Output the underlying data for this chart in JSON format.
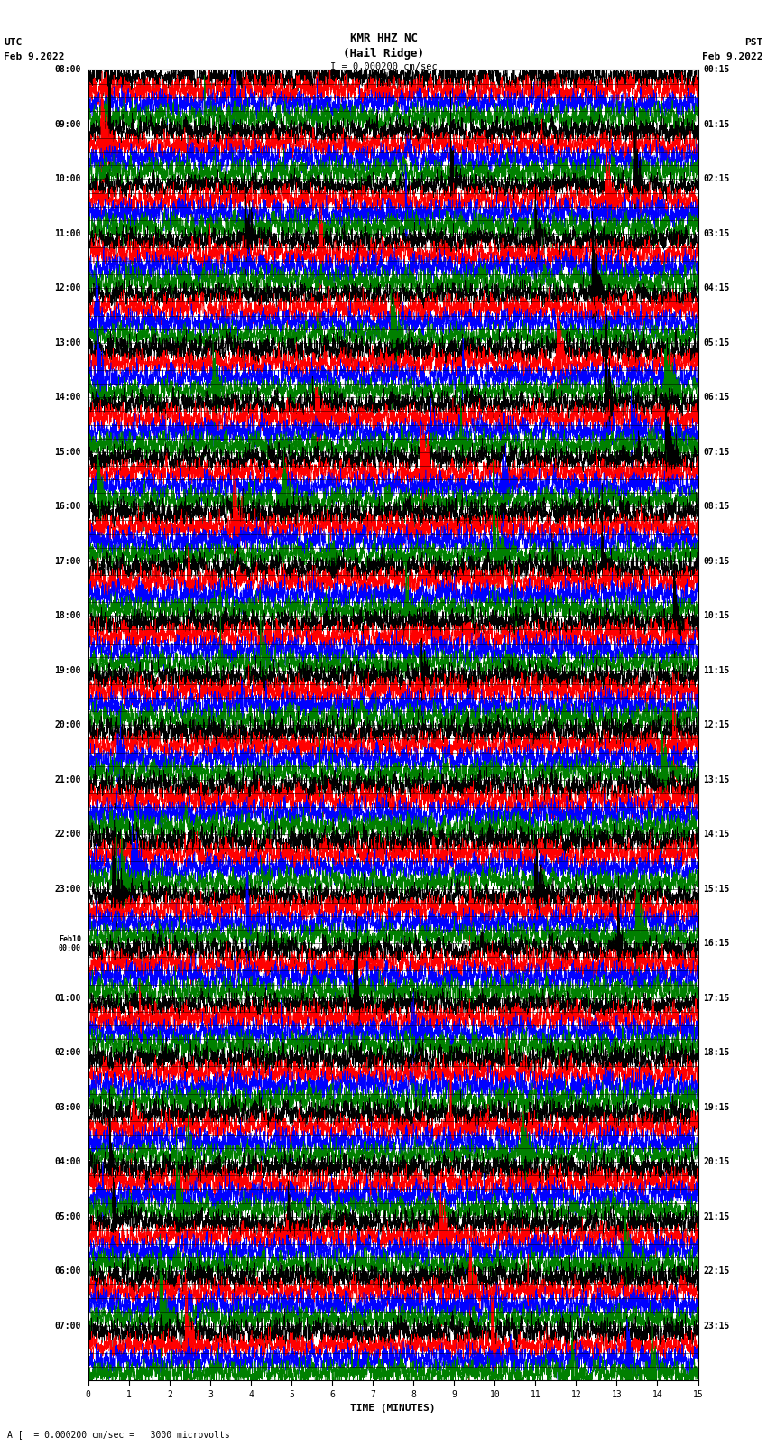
{
  "title_line1": "KMR HHZ NC",
  "title_line2": "(Hail Ridge)",
  "scale_text": "I = 0.000200 cm/sec",
  "xlabel": "TIME (MINUTES)",
  "bottom_note": "A [  = 0.000200 cm/sec =   3000 microvolts",
  "xlim": [
    0,
    15
  ],
  "xticks": [
    0,
    1,
    2,
    3,
    4,
    5,
    6,
    7,
    8,
    9,
    10,
    11,
    12,
    13,
    14,
    15
  ],
  "utc_times": [
    "08:00",
    "",
    "",
    "",
    "09:00",
    "",
    "",
    "",
    "10:00",
    "",
    "",
    "",
    "11:00",
    "",
    "",
    "",
    "12:00",
    "",
    "",
    "",
    "13:00",
    "",
    "",
    "",
    "14:00",
    "",
    "",
    "",
    "15:00",
    "",
    "",
    "",
    "16:00",
    "",
    "",
    "",
    "17:00",
    "",
    "",
    "",
    "18:00",
    "",
    "",
    "",
    "19:00",
    "",
    "",
    "",
    "20:00",
    "",
    "",
    "",
    "21:00",
    "",
    "",
    "",
    "22:00",
    "",
    "",
    "",
    "23:00",
    "",
    "",
    "",
    "Feb10\n00:00",
    "",
    "",
    "",
    "01:00",
    "",
    "",
    "",
    "02:00",
    "",
    "",
    "",
    "03:00",
    "",
    "",
    "",
    "04:00",
    "",
    "",
    "",
    "05:00",
    "",
    "",
    "",
    "06:00",
    "",
    "",
    "",
    "07:00",
    "",
    "",
    ""
  ],
  "pst_times": [
    "00:15",
    "",
    "",
    "",
    "01:15",
    "",
    "",
    "",
    "02:15",
    "",
    "",
    "",
    "03:15",
    "",
    "",
    "",
    "04:15",
    "",
    "",
    "",
    "05:15",
    "",
    "",
    "",
    "06:15",
    "",
    "",
    "",
    "07:15",
    "",
    "",
    "",
    "08:15",
    "",
    "",
    "",
    "09:15",
    "",
    "",
    "",
    "10:15",
    "",
    "",
    "",
    "11:15",
    "",
    "",
    "",
    "12:15",
    "",
    "",
    "",
    "13:15",
    "",
    "",
    "",
    "14:15",
    "",
    "",
    "",
    "15:15",
    "",
    "",
    "",
    "16:15",
    "",
    "",
    "",
    "17:15",
    "",
    "",
    "",
    "18:15",
    "",
    "",
    "",
    "19:15",
    "",
    "",
    "",
    "20:15",
    "",
    "",
    "",
    "21:15",
    "",
    "",
    "",
    "22:15",
    "",
    "",
    "",
    "23:15",
    "",
    "",
    ""
  ],
  "num_rows": 96,
  "fig_width": 8.5,
  "fig_height": 16.13,
  "bg_color": "white",
  "trace_color_cycle": [
    "black",
    "red",
    "blue",
    "green"
  ]
}
